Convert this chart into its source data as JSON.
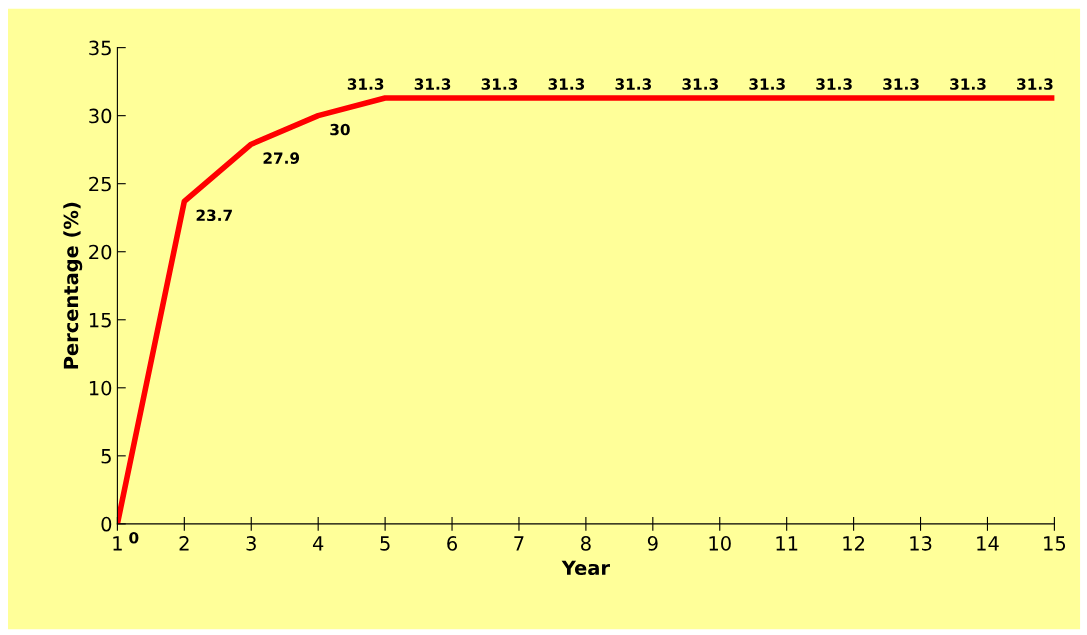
{
  "chart_data": {
    "type": "line",
    "xlabel": "Year",
    "ylabel": "Percentage (%)",
    "x": [
      1,
      2,
      3,
      4,
      5,
      6,
      7,
      8,
      9,
      10,
      11,
      12,
      13,
      14,
      15
    ],
    "series": [
      {
        "color": "#ff0000",
        "values": [
          0,
          23.7,
          27.9,
          30,
          31.3,
          31.3,
          31.3,
          31.3,
          31.3,
          31.3,
          31.3,
          31.3,
          31.3,
          31.3,
          31.3
        ]
      }
    ],
    "xlim": [
      1,
      15
    ],
    "xticks": [
      1,
      2,
      3,
      4,
      5,
      6,
      7,
      8,
      9,
      10,
      11,
      12,
      13,
      14,
      15
    ],
    "ylim": [
      0,
      35
    ],
    "yticks": [
      0,
      5,
      10,
      15,
      20,
      25,
      30,
      35
    ],
    "grid": false,
    "legend": false,
    "marker": "none",
    "line_style": "solid",
    "data_labels": true
  }
}
